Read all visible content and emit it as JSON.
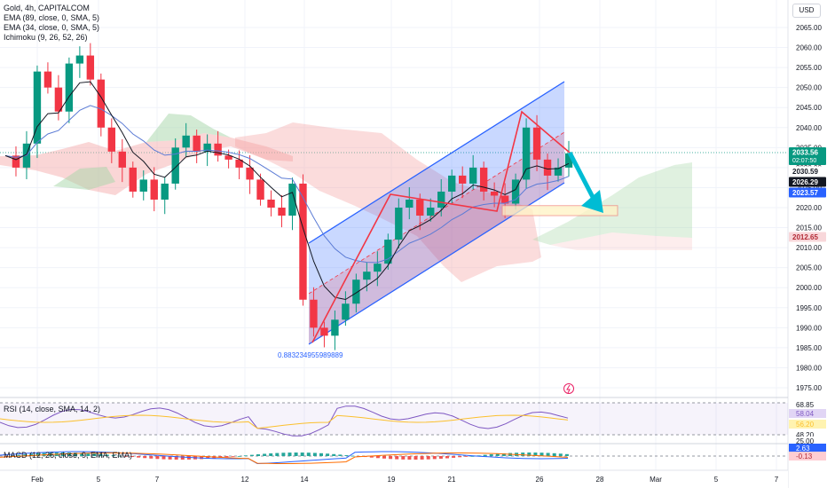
{
  "header": {
    "title": "Gold, 4h, CAPITALCOM",
    "indicators": [
      "EMA (89, close, 0, SMA, 5)",
      "EMA (34, close, 0, SMA, 5)",
      "Ichimoku (9, 26, 52, 26)"
    ],
    "currency": "USD"
  },
  "price_axis": {
    "ticks": [
      "2065.00",
      "2060.00",
      "2055.00",
      "2050.00",
      "2045.00",
      "2040.00",
      "2035.00",
      "2030.00",
      "2025.00",
      "2020.00",
      "2015.00",
      "2010.00",
      "2005.00",
      "2000.00",
      "1995.00",
      "1990.00",
      "1985.00",
      "1980.00",
      "1975.00"
    ],
    "tick_values": [
      2065,
      2060,
      2055,
      2050,
      2045,
      2040,
      2035,
      2030,
      2025,
      2020,
      2015,
      2010,
      2005,
      2000,
      1995,
      1990,
      1985,
      1980,
      1975
    ]
  },
  "badges": [
    {
      "label": "2033.56",
      "sub": "02:07:50",
      "value": 2033.56,
      "bg": "#089981",
      "fg": "#ffffff"
    },
    {
      "label": "2030.59",
      "value": 2030.59,
      "bg": "#ffffff",
      "fg": "#131722"
    },
    {
      "label": "2026.29",
      "value": 2026.29,
      "bg": "#131722",
      "fg": "#ffffff"
    },
    {
      "label": "2023.57",
      "value": 2023.57,
      "bg": "#2962ff",
      "fg": "#ffffff"
    },
    {
      "label": "2012.65",
      "value": 2012.65,
      "bg": "#f8d7da",
      "fg": "#b22833"
    }
  ],
  "time_axis": [
    "Feb",
    "5",
    "7",
    "12",
    "14",
    "19",
    "21",
    "26",
    "28",
    "Mar",
    "5",
    "7"
  ],
  "annotation_text": "0.883234955989889",
  "rsi": {
    "legend": "RSI (14, close, SMA, 14, 2)",
    "levels": [
      "68.85",
      "58.04",
      "56.20",
      "48.20"
    ],
    "level_colors": [
      "#131722",
      "#7e57c2",
      "#fbc02d",
      "#131722"
    ]
  },
  "macd": {
    "legend": "MACD (12, 26, close, 9, EMA, EMA)",
    "levels": [
      "25.00",
      "2.63",
      "-0.13"
    ]
  },
  "chart_data": {
    "type": "candlestick",
    "title": "Gold, 4h, CAPITALCOM",
    "ylim": [
      1973,
      2068
    ],
    "last_price": 2033.56,
    "close_series": [
      2033,
      2030,
      2036,
      2054,
      2050,
      2044,
      2056,
      2058,
      2052,
      2040,
      2034,
      2030,
      2024,
      2027,
      2022,
      2026,
      2035,
      2038,
      2034,
      2036,
      2033,
      2032,
      2030,
      2027,
      2022,
      2020,
      2018,
      2026,
      1997,
      1990,
      1988,
      1992,
      1996,
      2002,
      2004,
      2006,
      2012,
      2020,
      2022,
      2018,
      2020,
      2024,
      2028,
      2026,
      2030,
      2024,
      2023,
      2021,
      2027,
      2040,
      2032,
      2028,
      2030,
      2033.56
    ],
    "channel": {
      "lower": [
        [
          0,
          1986
        ],
        [
          1,
          2024
        ]
      ],
      "upper": [
        [
          0,
          2011
        ],
        [
          1,
          2052
        ]
      ]
    },
    "target_box": [
      2018,
      2020.5
    ],
    "colors": {
      "up": "#089981",
      "down": "#f23645",
      "ema89": "#5b7bd5",
      "ema34": "#131722",
      "cloud_bull": "#a5d6a7",
      "cloud_bear": "#f5a3a3",
      "channel": "#2962ff",
      "arrow": "#00bcd4"
    }
  }
}
